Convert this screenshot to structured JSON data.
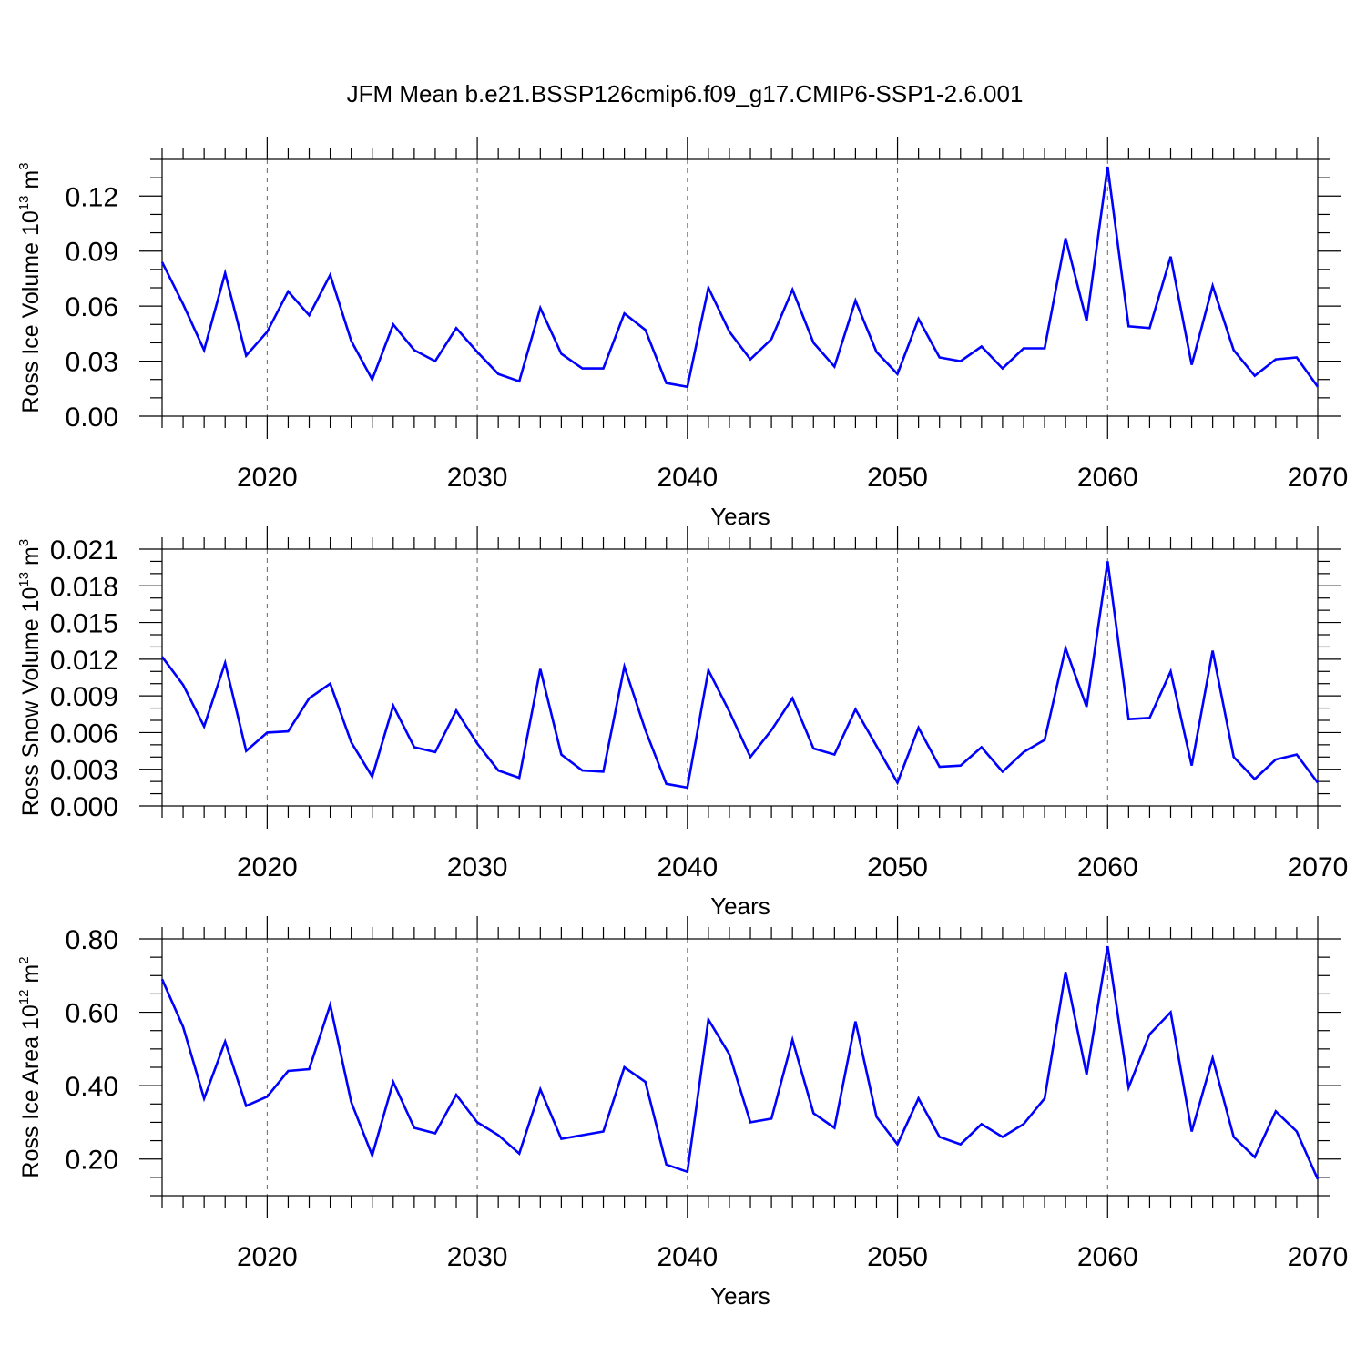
{
  "title": "JFM Mean b.e21.BSSP126cmip6.f09_g17.CMIP6-SSP1-2.6.001",
  "colors": {
    "series": "#0000ff",
    "grid": "#666666",
    "axes": "#000000"
  },
  "chart_data": [
    {
      "type": "line",
      "ylabel": {
        "text": "Ross Ice Volume 10",
        "exponent": "13",
        "unit": " m",
        "unit_exponent": "3"
      },
      "xlabel": "Years",
      "xlim": [
        2015,
        2070
      ],
      "ylim": [
        0.0,
        0.14
      ],
      "yticks": [
        "0.00",
        "0.03",
        "0.06",
        "0.09",
        "0.12"
      ],
      "yticks_values": [
        0.0,
        0.03,
        0.06,
        0.09,
        0.12
      ],
      "yminor_step": 0.01,
      "xticks": [
        "2020",
        "2030",
        "2040",
        "2050",
        "2060",
        "2070"
      ],
      "xticks_values": [
        2020,
        2030,
        2040,
        2050,
        2060,
        2070
      ],
      "grid": "vertical-dashed",
      "series": [
        {
          "name": "Ross Ice Volume",
          "x": [
            2015,
            2016,
            2017,
            2018,
            2019,
            2020,
            2021,
            2022,
            2023,
            2024,
            2025,
            2026,
            2027,
            2028,
            2029,
            2030,
            2031,
            2032,
            2033,
            2034,
            2035,
            2036,
            2037,
            2038,
            2039,
            2040,
            2041,
            2042,
            2043,
            2044,
            2045,
            2046,
            2047,
            2048,
            2049,
            2050,
            2051,
            2052,
            2053,
            2054,
            2055,
            2056,
            2057,
            2058,
            2059,
            2060,
            2061,
            2062,
            2063,
            2064,
            2065,
            2066,
            2067,
            2068,
            2069,
            2070
          ],
          "values": [
            0.084,
            0.061,
            0.036,
            0.078,
            0.033,
            0.046,
            0.068,
            0.055,
            0.077,
            0.041,
            0.02,
            0.05,
            0.036,
            0.03,
            0.048,
            0.035,
            0.023,
            0.019,
            0.059,
            0.034,
            0.026,
            0.026,
            0.056,
            0.047,
            0.018,
            0.016,
            0.07,
            0.046,
            0.031,
            0.042,
            0.069,
            0.04,
            0.027,
            0.063,
            0.035,
            0.023,
            0.053,
            0.032,
            0.03,
            0.038,
            0.026,
            0.037,
            0.037,
            0.097,
            0.052,
            0.136,
            0.049,
            0.048,
            0.087,
            0.028,
            0.071,
            0.036,
            0.022,
            0.031,
            0.032,
            0.016
          ]
        }
      ]
    },
    {
      "type": "line",
      "ylabel": {
        "text": "Ross Snow Volume 10",
        "exponent": "13",
        "unit": " m",
        "unit_exponent": "3"
      },
      "xlabel": "Years",
      "xlim": [
        2015,
        2070
      ],
      "ylim": [
        0.0,
        0.021
      ],
      "yticks": [
        "0.000",
        "0.003",
        "0.006",
        "0.009",
        "0.012",
        "0.015",
        "0.018",
        "0.021"
      ],
      "yticks_values": [
        0.0,
        0.003,
        0.006,
        0.009,
        0.012,
        0.015,
        0.018,
        0.021
      ],
      "yminor_step": 0.001,
      "xticks": [
        "2020",
        "2030",
        "2040",
        "2050",
        "2060",
        "2070"
      ],
      "xticks_values": [
        2020,
        2030,
        2040,
        2050,
        2060,
        2070
      ],
      "grid": "vertical-dashed",
      "series": [
        {
          "name": "Ross Snow Volume",
          "x": [
            2015,
            2016,
            2017,
            2018,
            2019,
            2020,
            2021,
            2022,
            2023,
            2024,
            2025,
            2026,
            2027,
            2028,
            2029,
            2030,
            2031,
            2032,
            2033,
            2034,
            2035,
            2036,
            2037,
            2038,
            2039,
            2040,
            2041,
            2042,
            2043,
            2044,
            2045,
            2046,
            2047,
            2048,
            2049,
            2050,
            2051,
            2052,
            2053,
            2054,
            2055,
            2056,
            2057,
            2058,
            2059,
            2060,
            2061,
            2062,
            2063,
            2064,
            2065,
            2066,
            2067,
            2068,
            2069,
            2070
          ],
          "values": [
            0.0122,
            0.0099,
            0.0065,
            0.0117,
            0.0045,
            0.006,
            0.0061,
            0.0088,
            0.01,
            0.0052,
            0.0024,
            0.0082,
            0.0048,
            0.0044,
            0.0078,
            0.0051,
            0.0029,
            0.0023,
            0.0112,
            0.0042,
            0.0029,
            0.0028,
            0.0114,
            0.0062,
            0.0018,
            0.0015,
            0.0111,
            0.0077,
            0.004,
            0.0062,
            0.0088,
            0.0047,
            0.0042,
            0.0079,
            0.0049,
            0.0019,
            0.0064,
            0.0032,
            0.0033,
            0.0048,
            0.0028,
            0.0044,
            0.0054,
            0.0129,
            0.0081,
            0.02,
            0.0071,
            0.0072,
            0.011,
            0.0033,
            0.0127,
            0.004,
            0.0022,
            0.0038,
            0.0042,
            0.0019
          ]
        }
      ]
    },
    {
      "type": "line",
      "ylabel": {
        "text": "Ross Ice Area 10",
        "exponent": "12",
        "unit": " m",
        "unit_exponent": "2"
      },
      "xlabel": "Years",
      "xlim": [
        2015,
        2070
      ],
      "ylim": [
        0.1,
        0.8
      ],
      "yticks": [
        "0.20",
        "0.40",
        "0.60",
        "0.80"
      ],
      "yticks_values": [
        0.2,
        0.4,
        0.6,
        0.8
      ],
      "yminor_step": 0.05,
      "xticks": [
        "2020",
        "2030",
        "2040",
        "2050",
        "2060",
        "2070"
      ],
      "xticks_values": [
        2020,
        2030,
        2040,
        2050,
        2060,
        2070
      ],
      "grid": "vertical-dashed",
      "series": [
        {
          "name": "Ross Ice Area",
          "x": [
            2015,
            2016,
            2017,
            2018,
            2019,
            2020,
            2021,
            2022,
            2023,
            2024,
            2025,
            2026,
            2027,
            2028,
            2029,
            2030,
            2031,
            2032,
            2033,
            2034,
            2035,
            2036,
            2037,
            2038,
            2039,
            2040,
            2041,
            2042,
            2043,
            2044,
            2045,
            2046,
            2047,
            2048,
            2049,
            2050,
            2051,
            2052,
            2053,
            2054,
            2055,
            2056,
            2057,
            2058,
            2059,
            2060,
            2061,
            2062,
            2063,
            2064,
            2065,
            2066,
            2067,
            2068,
            2069,
            2070
          ],
          "values": [
            0.69,
            0.56,
            0.365,
            0.52,
            0.345,
            0.37,
            0.44,
            0.445,
            0.62,
            0.355,
            0.21,
            0.41,
            0.285,
            0.27,
            0.375,
            0.3,
            0.265,
            0.215,
            0.39,
            0.255,
            0.265,
            0.275,
            0.45,
            0.41,
            0.185,
            0.165,
            0.58,
            0.485,
            0.3,
            0.31,
            0.525,
            0.325,
            0.285,
            0.575,
            0.315,
            0.24,
            0.365,
            0.26,
            0.24,
            0.295,
            0.26,
            0.295,
            0.365,
            0.71,
            0.43,
            0.78,
            0.395,
            0.54,
            0.6,
            0.275,
            0.475,
            0.26,
            0.205,
            0.33,
            0.275,
            0.145
          ]
        }
      ]
    }
  ]
}
